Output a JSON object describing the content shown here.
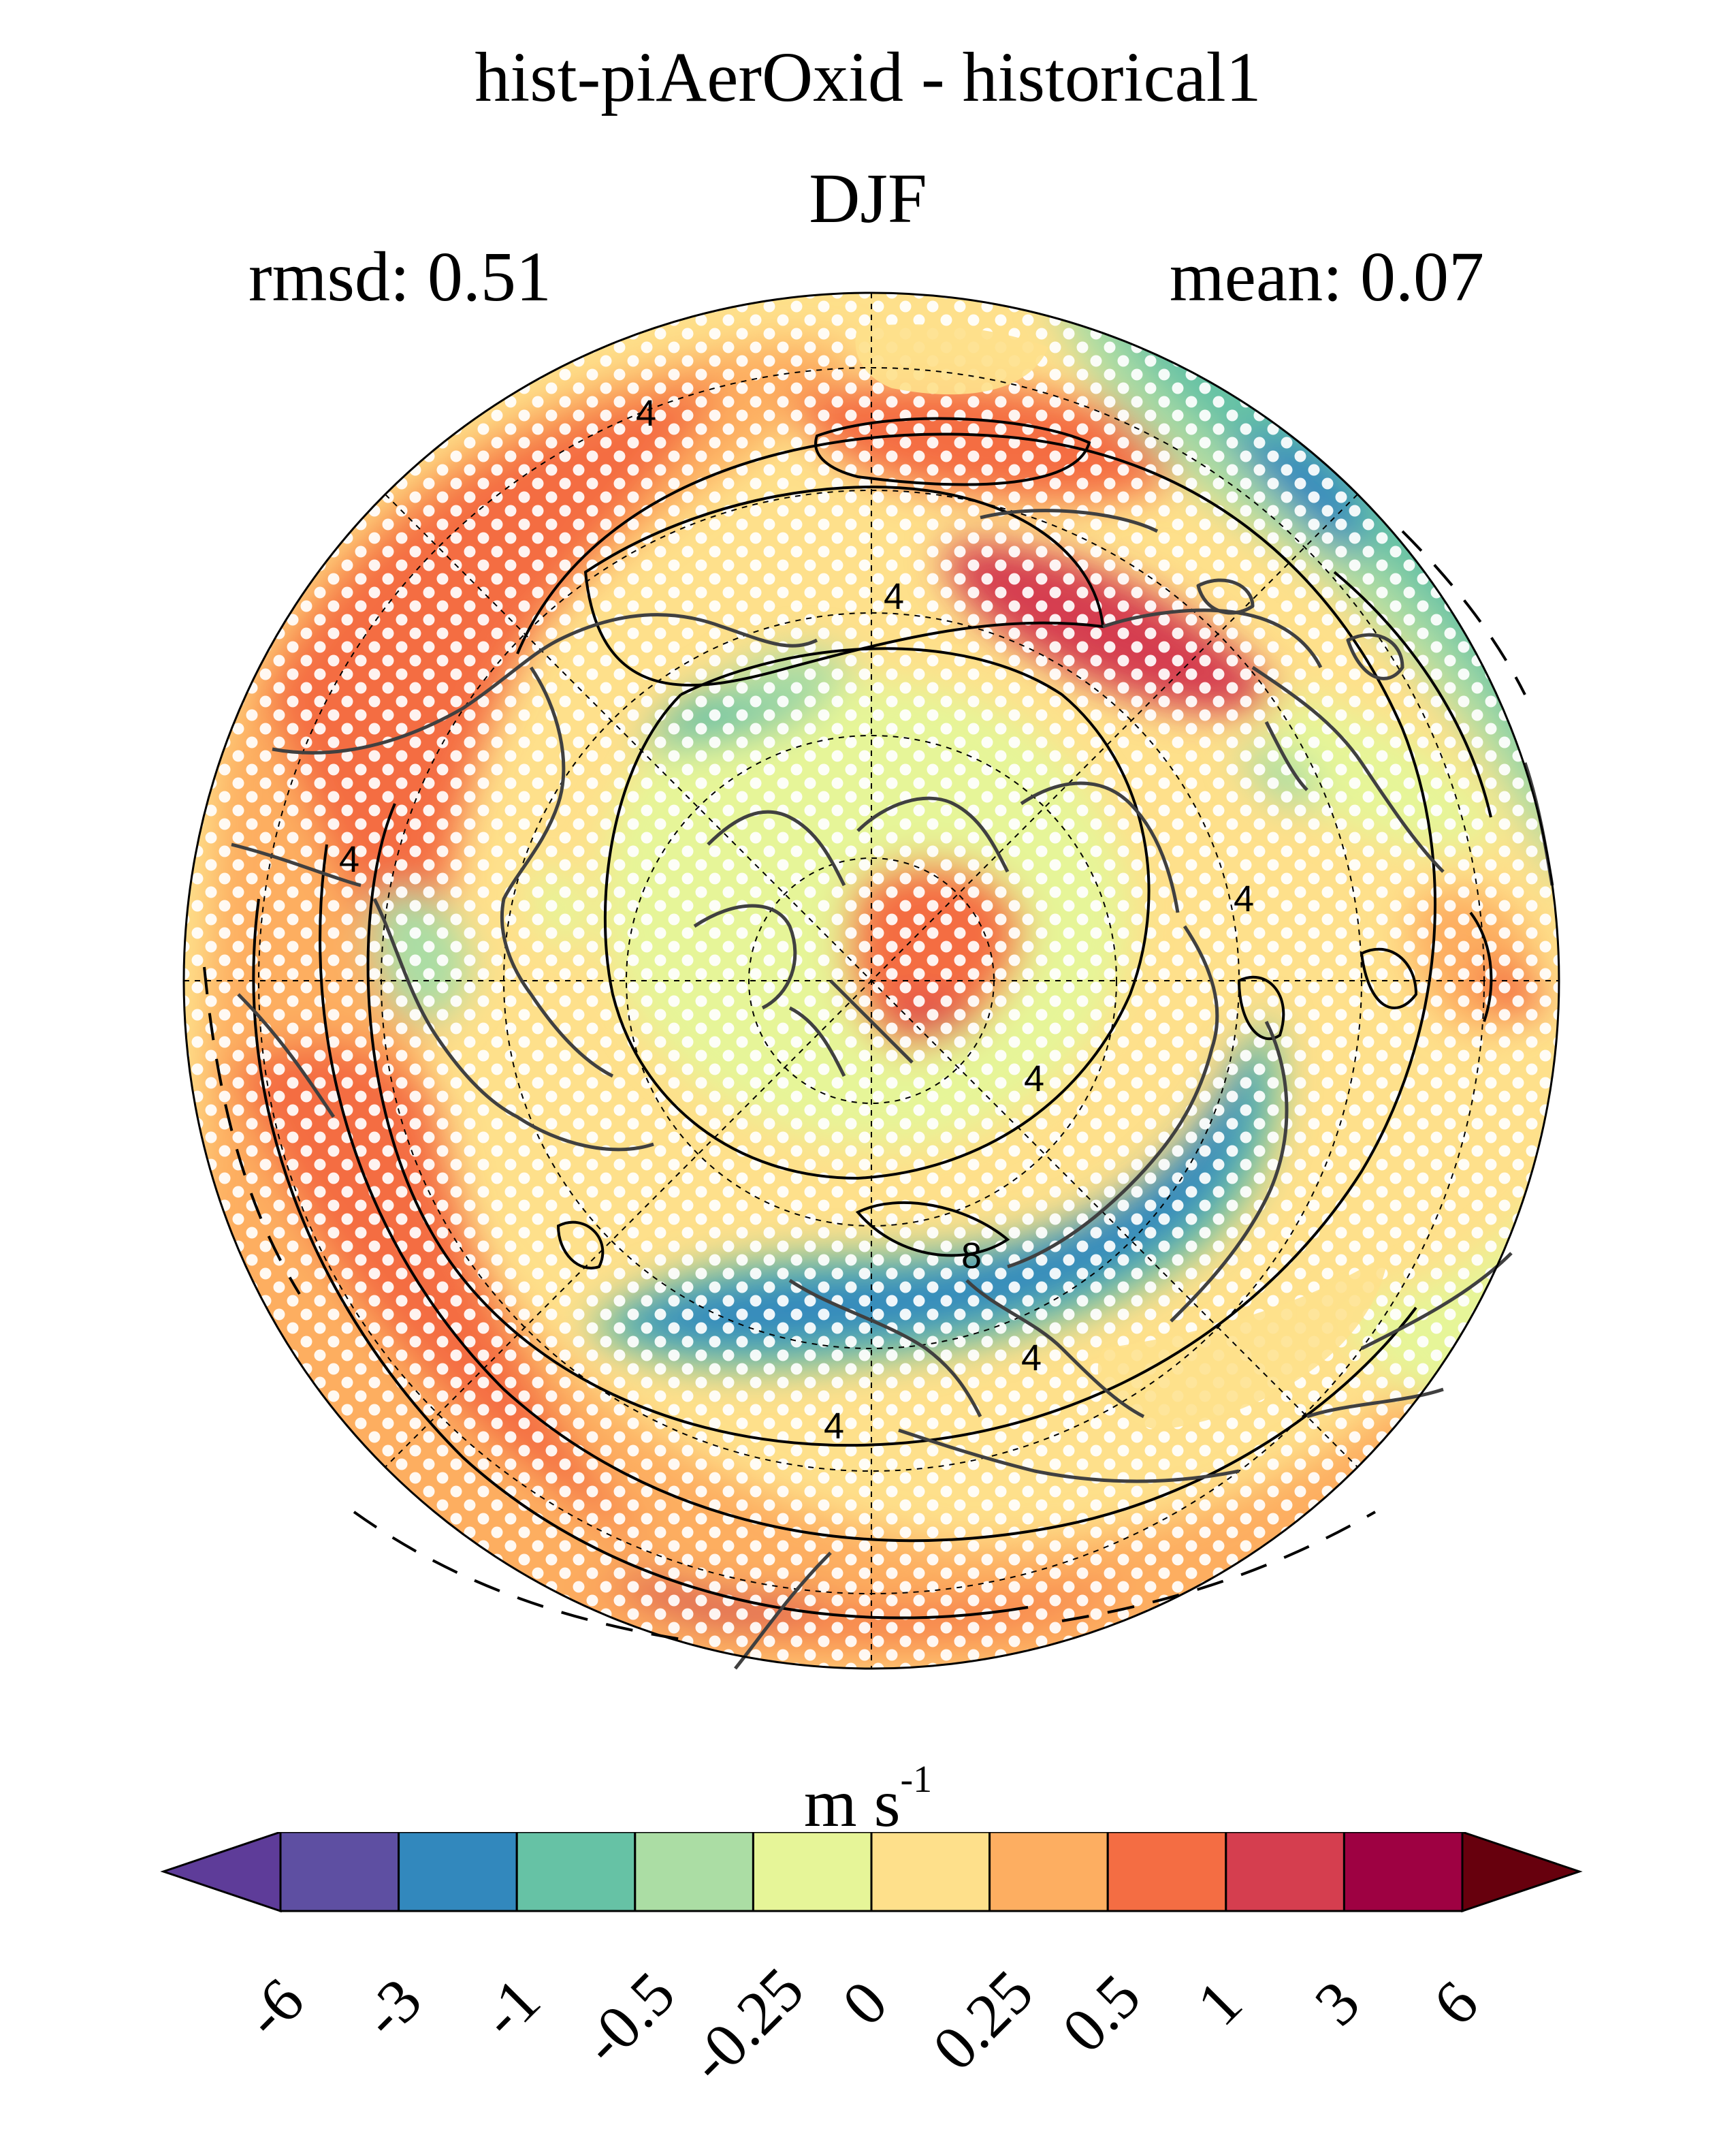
{
  "title": "hist-piAerOxid - historical1",
  "season": "DJF",
  "stats": {
    "rmsd": "rmsd: 0.51",
    "mean": "mean: 0.07"
  },
  "map": {
    "projection": "north-polar-stereographic",
    "stippling": "white dots mark significant regions",
    "contour_labels": [
      "4",
      "4",
      "4",
      "4",
      "4",
      "4",
      "4",
      "8"
    ]
  },
  "colorbar": {
    "units_main": "m s",
    "units_exp": "-1",
    "levels": [
      "-6",
      "-3",
      "-1",
      "-0.5",
      "-0.25",
      "0",
      "0.25",
      "0.5",
      "1",
      "3",
      "6"
    ],
    "colors": [
      "#5e3c99",
      "#5e4fa2",
      "#3288bd",
      "#66c2a5",
      "#abdda4",
      "#e6f598",
      "#fee08b",
      "#fdae61",
      "#f46d43",
      "#d53e4f",
      "#9e0142",
      "#67000d"
    ]
  }
}
